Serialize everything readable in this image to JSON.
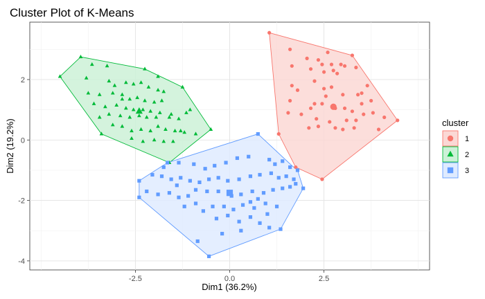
{
  "chart_data": {
    "type": "scatter",
    "title": "Cluster Plot of K-Means",
    "xlabel": "Dim1 (36.2%)",
    "ylabel": "Dim2 (19.2%)",
    "xlim": [
      -5.3,
      5.3
    ],
    "ylim": [
      -4.3,
      3.9
    ],
    "x_ticks": [
      -2.5,
      0.0,
      2.5
    ],
    "x_tick_labels": [
      "-2.5",
      "0.0",
      "2.5"
    ],
    "y_ticks": [
      -4,
      -2,
      0,
      2
    ],
    "y_tick_labels": [
      "-4",
      "-2",
      "0",
      "2"
    ],
    "grid": true,
    "legend": {
      "title": "cluster",
      "position": "right"
    },
    "series": [
      {
        "name": "1",
        "marker": "circle",
        "color": "#F8766D",
        "fill": "#FBD8D5",
        "centroid": [
          2.75,
          1.1
        ],
        "hull": [
          [
            1.05,
            3.55
          ],
          [
            3.25,
            2.8
          ],
          [
            4.45,
            0.65
          ],
          [
            2.45,
            -1.3
          ],
          [
            1.75,
            -0.9
          ],
          [
            1.3,
            0.2
          ]
        ],
        "points": [
          [
            1.05,
            3.55
          ],
          [
            3.25,
            2.8
          ],
          [
            4.45,
            0.65
          ],
          [
            2.45,
            -1.3
          ],
          [
            1.75,
            -0.9
          ],
          [
            1.3,
            0.2
          ],
          [
            1.6,
            3.0
          ],
          [
            1.65,
            2.45
          ],
          [
            1.65,
            1.8
          ],
          [
            1.6,
            1.3
          ],
          [
            1.8,
            1.65
          ],
          [
            2.15,
            2.35
          ],
          [
            2.45,
            2.5
          ],
          [
            2.6,
            2.9
          ],
          [
            2.7,
            2.5
          ],
          [
            2.75,
            2.3
          ],
          [
            2.85,
            2.2
          ],
          [
            2.95,
            2.5
          ],
          [
            3.05,
            2.45
          ],
          [
            3.35,
            2.4
          ],
          [
            2.5,
            2.25
          ],
          [
            2.25,
            1.95
          ],
          [
            2.5,
            1.7
          ],
          [
            2.7,
            1.75
          ],
          [
            3.0,
            1.5
          ],
          [
            3.4,
            1.5
          ],
          [
            3.65,
            1.8
          ],
          [
            3.5,
            1.55
          ],
          [
            3.75,
            1.3
          ],
          [
            2.25,
            1.2
          ],
          [
            2.15,
            1.05
          ],
          [
            2.45,
            1.2
          ],
          [
            2.8,
            1.05
          ],
          [
            3.05,
            1.05
          ],
          [
            3.25,
            0.95
          ],
          [
            3.5,
            1.2
          ],
          [
            3.55,
            0.85
          ],
          [
            3.8,
            0.9
          ],
          [
            3.95,
            0.35
          ],
          [
            4.1,
            0.75
          ],
          [
            2.35,
            0.45
          ],
          [
            2.1,
            0.4
          ],
          [
            2.3,
            0.7
          ],
          [
            2.65,
            0.6
          ],
          [
            2.8,
            0.4
          ],
          [
            3.0,
            0.35
          ],
          [
            3.1,
            0.65
          ],
          [
            3.3,
            0.4
          ],
          [
            3.35,
            0.65
          ],
          [
            1.55,
            0.9
          ],
          [
            1.9,
            0.85
          ],
          [
            2.05,
            2.7
          ],
          [
            2.35,
            2.65
          ],
          [
            2.55,
            1.45
          ]
        ]
      },
      {
        "name": "2",
        "marker": "triangle",
        "color": "#00BA38",
        "fill": "#CCF1D7",
        "centroid": [
          -2.4,
          0.95
        ],
        "hull": [
          [
            -4.5,
            2.1
          ],
          [
            -3.95,
            2.75
          ],
          [
            -2.25,
            2.35
          ],
          [
            -1.25,
            1.75
          ],
          [
            -0.5,
            0.35
          ],
          [
            -1.6,
            -0.75
          ],
          [
            -3.4,
            0.2
          ]
        ],
        "points": [
          [
            -4.5,
            2.1
          ],
          [
            -3.95,
            2.75
          ],
          [
            -2.25,
            2.35
          ],
          [
            -1.25,
            1.75
          ],
          [
            -0.5,
            0.35
          ],
          [
            -1.6,
            -0.75
          ],
          [
            -3.4,
            0.2
          ],
          [
            -3.65,
            2.5
          ],
          [
            -3.25,
            2.45
          ],
          [
            -3.8,
            2.05
          ],
          [
            -3.2,
            1.95
          ],
          [
            -3.05,
            1.8
          ],
          [
            -2.75,
            1.9
          ],
          [
            -2.55,
            1.85
          ],
          [
            -2.35,
            1.9
          ],
          [
            -2.15,
            1.75
          ],
          [
            -1.9,
            1.65
          ],
          [
            -1.75,
            1.6
          ],
          [
            -3.75,
            1.55
          ],
          [
            -3.45,
            1.5
          ],
          [
            -3.1,
            1.55
          ],
          [
            -2.85,
            1.5
          ],
          [
            -2.65,
            1.35
          ],
          [
            -2.45,
            1.4
          ],
          [
            -2.25,
            1.3
          ],
          [
            -2.0,
            1.25
          ],
          [
            -1.8,
            1.3
          ],
          [
            -3.6,
            1.2
          ],
          [
            -3.3,
            1.1
          ],
          [
            -3.0,
            1.15
          ],
          [
            -2.75,
            1.05
          ],
          [
            -2.55,
            1.0
          ],
          [
            -2.3,
            1.0
          ],
          [
            -2.1,
            0.95
          ],
          [
            -1.85,
            0.9
          ],
          [
            -1.55,
            0.85
          ],
          [
            -1.15,
            0.9
          ],
          [
            -1.05,
            1.0
          ],
          [
            -3.45,
            0.75
          ],
          [
            -3.2,
            0.85
          ],
          [
            -2.9,
            0.8
          ],
          [
            -2.65,
            0.75
          ],
          [
            -2.4,
            0.8
          ],
          [
            -2.2,
            0.75
          ],
          [
            -1.95,
            0.75
          ],
          [
            -1.6,
            0.75
          ],
          [
            -1.35,
            0.7
          ],
          [
            -3.1,
            0.5
          ],
          [
            -2.85,
            0.45
          ],
          [
            -2.6,
            0.3
          ],
          [
            -2.35,
            0.35
          ],
          [
            -2.1,
            0.3
          ],
          [
            -1.9,
            0.45
          ],
          [
            -1.7,
            0.35
          ],
          [
            -1.45,
            0.3
          ],
          [
            -1.2,
            0.25
          ],
          [
            -0.9,
            0.2
          ],
          [
            -2.6,
            0.05
          ],
          [
            -2.3,
            -0.05
          ],
          [
            -2.0,
            0.0
          ],
          [
            -1.75,
            -0.05
          ],
          [
            -1.5,
            -0.05
          ],
          [
            -1.3,
            0.3
          ],
          [
            -2.85,
            1.35
          ],
          [
            -1.9,
            2.1
          ]
        ]
      },
      {
        "name": "3",
        "marker": "square",
        "color": "#619CFF",
        "fill": "#DFEBFF",
        "centroid": [
          0.0,
          -1.75
        ],
        "hull": [
          [
            -2.4,
            -1.35
          ],
          [
            -2.4,
            -1.9
          ],
          [
            -0.55,
            -3.85
          ],
          [
            1.35,
            -2.95
          ],
          [
            1.95,
            -1.6
          ],
          [
            1.8,
            -1.0
          ],
          [
            1.65,
            -0.85
          ],
          [
            0.75,
            0.2
          ],
          [
            -1.65,
            -0.75
          ]
        ],
        "points": [
          [
            -2.4,
            -1.35
          ],
          [
            -2.4,
            -1.9
          ],
          [
            -0.55,
            -3.85
          ],
          [
            1.35,
            -2.95
          ],
          [
            1.95,
            -1.6
          ],
          [
            1.8,
            -1.0
          ],
          [
            0.75,
            0.2
          ],
          [
            -1.65,
            -0.75
          ],
          [
            -1.75,
            -0.9
          ],
          [
            -1.35,
            -0.75
          ],
          [
            -0.95,
            -0.8
          ],
          [
            -0.65,
            -0.95
          ],
          [
            -0.4,
            -0.85
          ],
          [
            -0.1,
            -0.75
          ],
          [
            0.2,
            -0.6
          ],
          [
            0.5,
            -0.55
          ],
          [
            1.05,
            -0.65
          ],
          [
            1.2,
            -0.8
          ],
          [
            1.4,
            -0.7
          ],
          [
            1.6,
            -0.9
          ],
          [
            -2.05,
            -1.15
          ],
          [
            -1.8,
            -1.2
          ],
          [
            -1.55,
            -1.3
          ],
          [
            -1.3,
            -1.25
          ],
          [
            -1.05,
            -1.35
          ],
          [
            -0.8,
            -1.4
          ],
          [
            -0.55,
            -1.3
          ],
          [
            -0.3,
            -1.25
          ],
          [
            -0.05,
            -1.35
          ],
          [
            0.25,
            -1.3
          ],
          [
            0.55,
            -1.2
          ],
          [
            0.8,
            -1.15
          ],
          [
            1.1,
            -1.1
          ],
          [
            1.3,
            -1.25
          ],
          [
            1.5,
            -1.2
          ],
          [
            1.7,
            -1.3
          ],
          [
            1.75,
            -1.45
          ],
          [
            -2.2,
            -1.7
          ],
          [
            -1.9,
            -1.8
          ],
          [
            -1.6,
            -1.75
          ],
          [
            -1.35,
            -1.9
          ],
          [
            -1.1,
            -1.85
          ],
          [
            -0.9,
            -1.65
          ],
          [
            -0.6,
            -1.7
          ],
          [
            -0.3,
            -1.7
          ],
          [
            0.05,
            -1.85
          ],
          [
            0.3,
            -1.8
          ],
          [
            0.6,
            -1.7
          ],
          [
            0.9,
            -1.75
          ],
          [
            1.15,
            -1.65
          ],
          [
            1.4,
            -1.6
          ],
          [
            1.6,
            -1.55
          ],
          [
            -1.2,
            -2.2
          ],
          [
            -0.9,
            -2.1
          ],
          [
            -0.7,
            -2.35
          ],
          [
            -0.45,
            -2.2
          ],
          [
            -0.15,
            -2.2
          ],
          [
            0.1,
            -2.3
          ],
          [
            0.35,
            -2.15
          ],
          [
            0.65,
            -2.25
          ],
          [
            0.95,
            -2.1
          ],
          [
            1.25,
            -2.2
          ],
          [
            -0.35,
            -2.6
          ],
          [
            -0.05,
            -2.5
          ],
          [
            0.25,
            -2.7
          ],
          [
            0.55,
            -2.55
          ],
          [
            0.8,
            -2.75
          ],
          [
            1.05,
            -2.9
          ],
          [
            -0.85,
            -3.35
          ],
          [
            -0.2,
            -3.1
          ],
          [
            0.3,
            -3.0
          ],
          [
            0.55,
            -2.05
          ],
          [
            0.75,
            -1.95
          ],
          [
            -1.4,
            -1.5
          ],
          [
            1.0,
            -2.45
          ]
        ]
      }
    ]
  }
}
